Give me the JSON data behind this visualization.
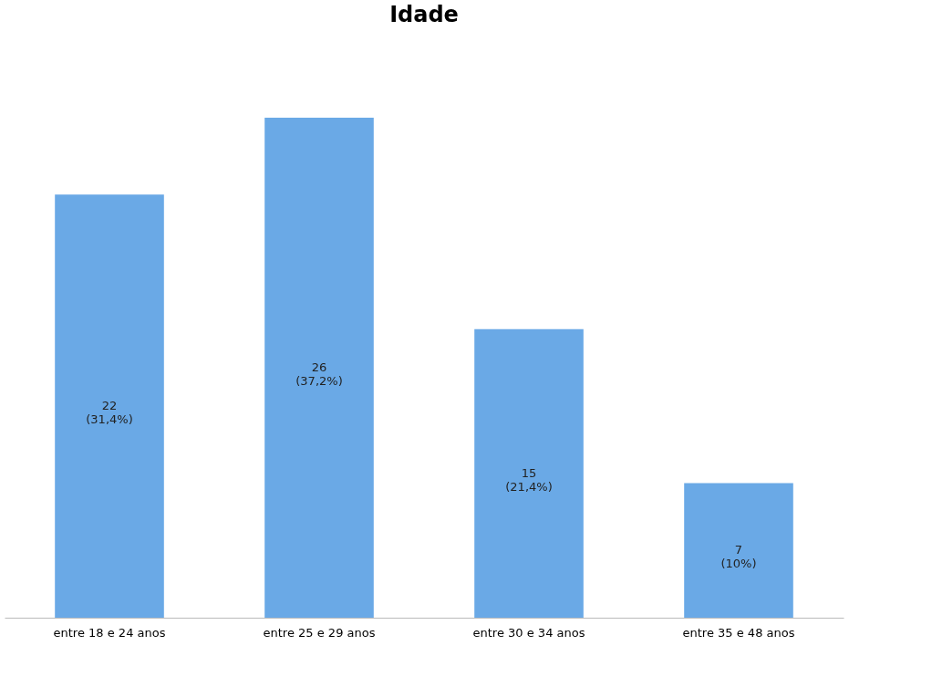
{
  "chart_data": {
    "type": "bar",
    "title": "Idade",
    "categories": [
      "entre 18 e 24 anos",
      "entre 25 e 29 anos",
      "entre 30 e 34 anos",
      "entre 35 e 48 anos"
    ],
    "values": [
      22,
      26,
      15,
      7
    ],
    "color": "#6aa9e6",
    "value_labels": [
      "22\n(31,4%)",
      "26\n(37,2%)",
      "15\n(21,4%)",
      "7\n(10%)"
    ],
    "grid": false
  }
}
